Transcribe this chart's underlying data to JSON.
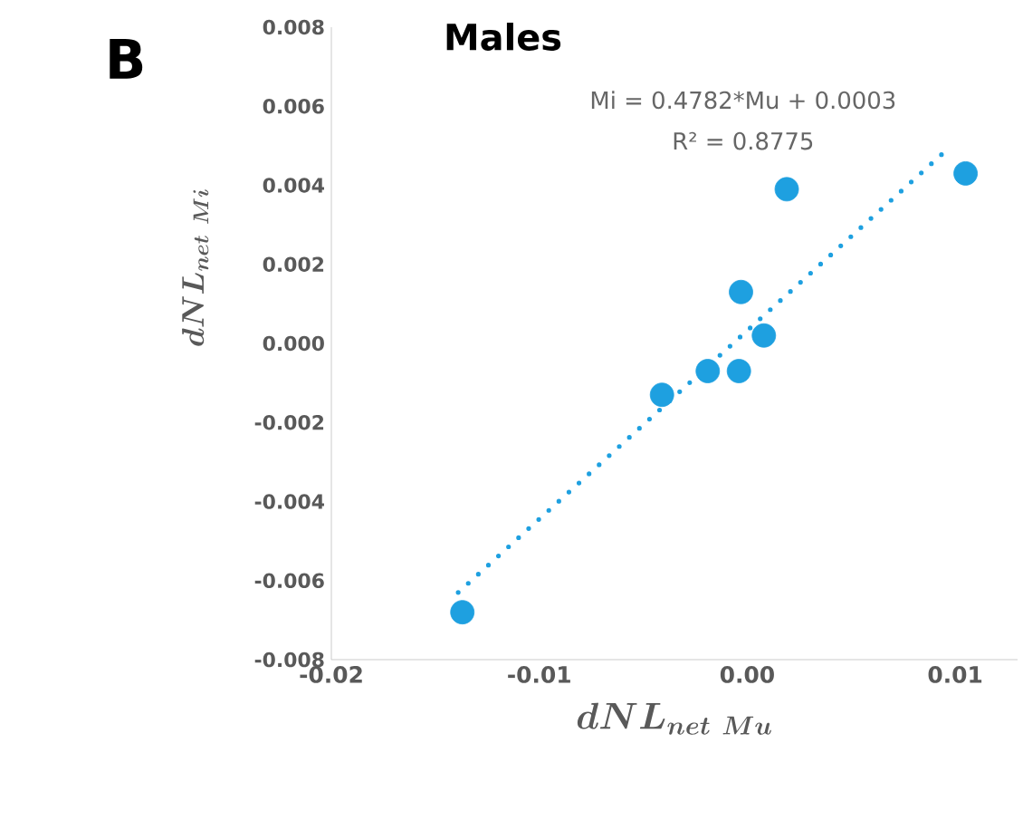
{
  "chart_data": {
    "type": "scatter",
    "title": "Males",
    "xlabel": "dNL_{net\\ Mu}",
    "ylabel": "dNL_{net\\ Mi}",
    "annotations": [
      "B",
      "Mi = 0.4782*Mu + 0.0003",
      "R² = 0.8775"
    ],
    "series": [
      {
        "marker": "circle",
        "color": "#1ea0e0",
        "x": [
          -0.0137,
          -0.0041,
          -0.0019,
          -0.0004,
          -0.0003,
          0.0008,
          0.0019,
          0.0105
        ],
        "values": [
          -0.0068,
          -0.0013,
          -0.0007,
          -0.0007,
          0.0013,
          0.0002,
          0.0039,
          0.0043
        ]
      },
      {
        "type": "line",
        "line_style": "dotted",
        "marker": "none",
        "color": "#1ea0e0",
        "x": [
          -0.0139,
          0.0096
        ],
        "values": [
          -0.0063,
          0.0049
        ]
      }
    ],
    "grid": false,
    "xlim": [
      -0.02,
      0.013
    ],
    "ylim": [
      -0.008,
      0.008
    ],
    "xticks": [
      {
        "value": -0.02,
        "label": "-0.02"
      },
      {
        "value": -0.01,
        "label": "-0.01"
      },
      {
        "value": 0,
        "label": "0.00"
      },
      {
        "value": 0.01,
        "label": "0.01"
      }
    ],
    "yticks": [
      {
        "value": -0.008,
        "label": "-0.008"
      },
      {
        "value": -0.006,
        "label": "-0.006"
      },
      {
        "value": -0.004,
        "label": "-0.004"
      },
      {
        "value": -0.002,
        "label": "-0.002"
      },
      {
        "value": 0,
        "label": "0.000"
      },
      {
        "value": 0.002,
        "label": "0.002"
      },
      {
        "value": 0.004,
        "label": "0.004"
      },
      {
        "value": 0.006,
        "label": "0.006"
      },
      {
        "value": 0.008,
        "label": "0.008"
      }
    ]
  }
}
